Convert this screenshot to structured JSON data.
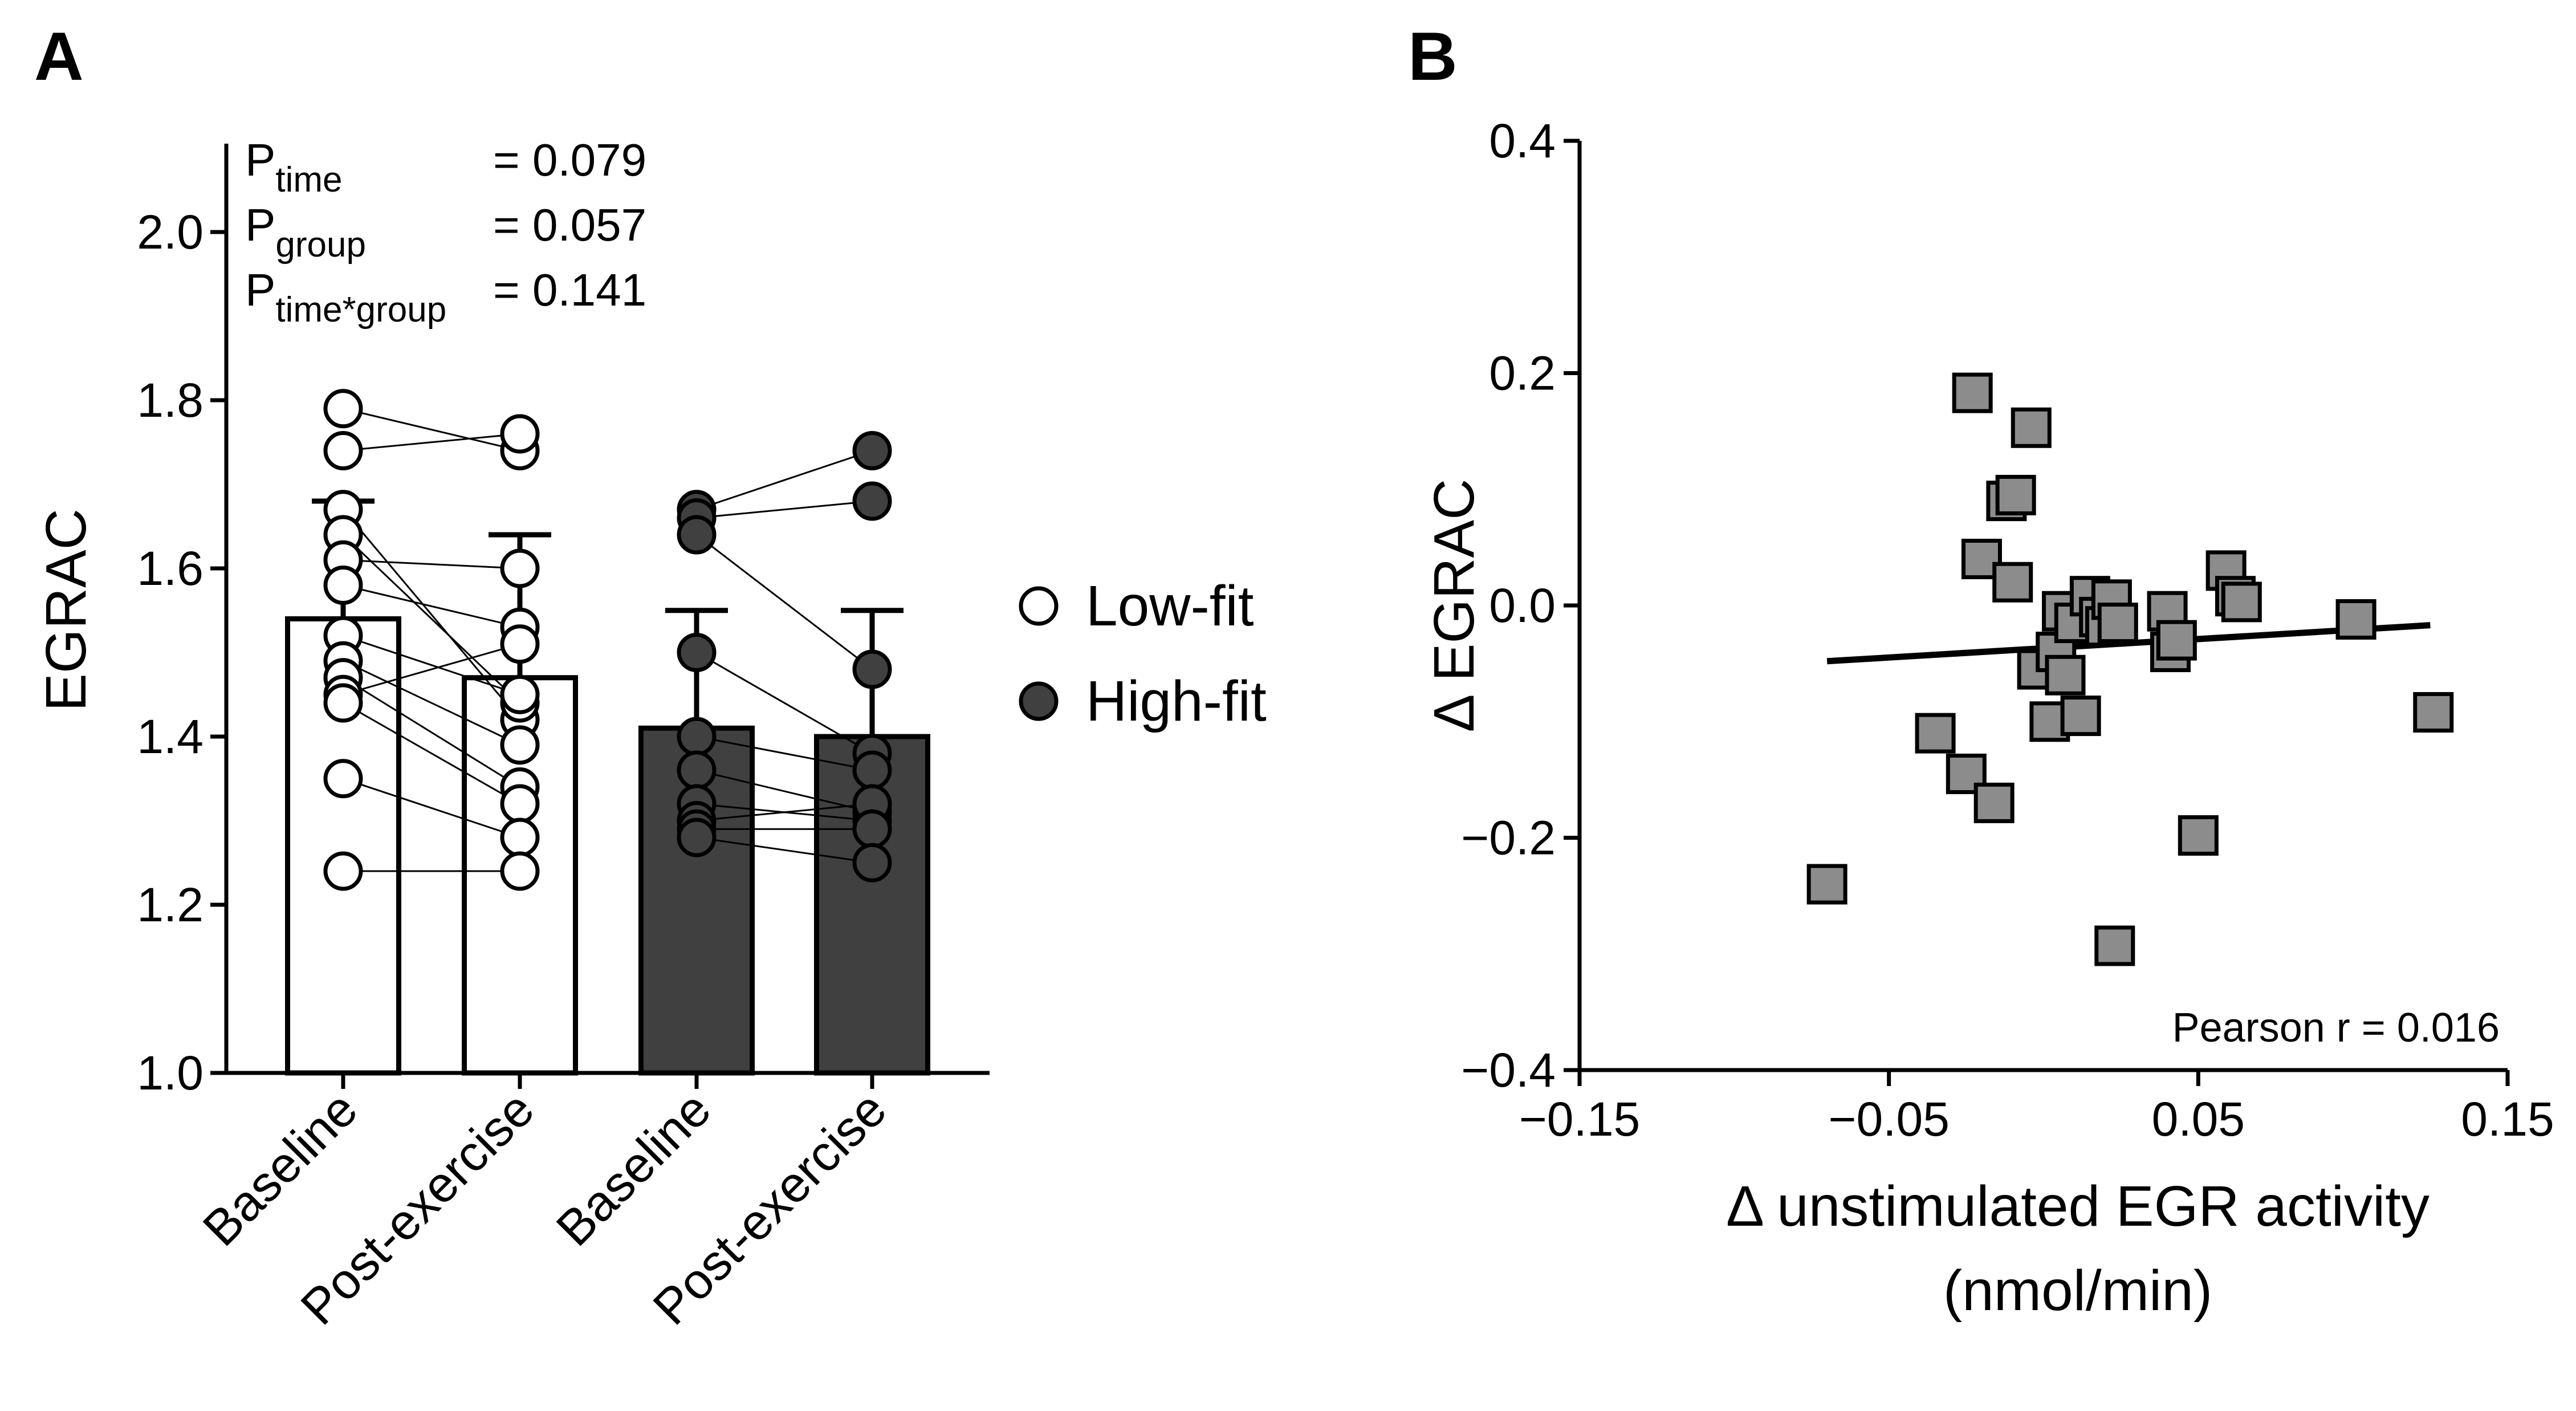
{
  "colors": {
    "low_fit_fill": "#ffffff",
    "high_fit_fill": "#404040",
    "scatter_fill": "#8c8c8c",
    "stroke": "#000000"
  },
  "chart_data": [
    {
      "panel_label": "A",
      "type": "bar",
      "categories": [
        "Baseline",
        "Post-exercise",
        "Baseline",
        "Post-exercise"
      ],
      "ylabel": "EGRAC",
      "ylim": [
        1.0,
        2.1
      ],
      "yticks": [
        "1.0",
        "1.2",
        "1.4",
        "1.6",
        "1.8",
        "2.0"
      ],
      "bars": [
        {
          "group": "Low-fit",
          "mean": 1.54,
          "sd": 0.14
        },
        {
          "group": "Low-fit",
          "mean": 1.47,
          "sd": 0.17
        },
        {
          "group": "High-fit",
          "mean": 1.41,
          "sd": 0.14
        },
        {
          "group": "High-fit",
          "mean": 1.4,
          "sd": 0.15
        }
      ],
      "paired_points": {
        "low_fit": {
          "baseline": [
            1.79,
            1.74,
            1.67,
            1.64,
            1.61,
            1.58,
            1.52,
            1.49,
            1.47,
            1.45,
            1.44,
            1.35,
            1.24
          ],
          "post": [
            1.74,
            1.76,
            1.42,
            1.44,
            1.6,
            1.53,
            1.45,
            1.39,
            1.34,
            1.51,
            1.32,
            1.28,
            1.24
          ]
        },
        "high_fit": {
          "baseline": [
            1.67,
            1.66,
            1.64,
            1.5,
            1.4,
            1.36,
            1.32,
            1.3,
            1.29,
            1.28
          ],
          "post": [
            1.74,
            1.68,
            1.48,
            1.38,
            1.36,
            1.31,
            1.3,
            1.32,
            1.29,
            1.25
          ]
        }
      },
      "stats": [
        {
          "base": "P",
          "sub": "time",
          "value": "= 0.079"
        },
        {
          "base": "P",
          "sub": "group",
          "value": "= 0.057"
        },
        {
          "base": "P",
          "sub": "time*group",
          "value": "= 0.141"
        }
      ],
      "legend": [
        {
          "label": "Low-fit",
          "fill": "#ffffff"
        },
        {
          "label": "High-fit",
          "fill": "#404040"
        }
      ]
    },
    {
      "panel_label": "B",
      "type": "scatter",
      "xlabel_line1": "Δ unstimulated EGR activity",
      "xlabel_line2": "(nmol/min)",
      "ylabel": "Δ EGRAC",
      "xlim": [
        -0.15,
        0.15
      ],
      "ylim": [
        -0.4,
        0.4
      ],
      "xticks": [
        "−0.15",
        "−0.05",
        "0.05",
        "0.15"
      ],
      "yticks": [
        "−0.4",
        "−0.2",
        "0.0",
        "0.2",
        "0.4"
      ],
      "annotation": "Pearson r = 0.016",
      "regression": {
        "x0": -0.07,
        "y0": -0.048,
        "x1": 0.125,
        "y1": -0.017
      },
      "points": [
        {
          "x": -0.07,
          "y": -0.24
        },
        {
          "x": -0.035,
          "y": -0.11
        },
        {
          "x": -0.025,
          "y": -0.145
        },
        {
          "x": -0.023,
          "y": 0.183
        },
        {
          "x": -0.02,
          "y": 0.04
        },
        {
          "x": -0.016,
          "y": -0.17
        },
        {
          "x": -0.012,
          "y": 0.09
        },
        {
          "x": -0.01,
          "y": 0.02
        },
        {
          "x": -0.009,
          "y": 0.095
        },
        {
          "x": -0.004,
          "y": 0.153
        },
        {
          "x": -0.002,
          "y": -0.055
        },
        {
          "x": 0.002,
          "y": -0.1
        },
        {
          "x": 0.004,
          "y": -0.04
        },
        {
          "x": 0.006,
          "y": -0.005
        },
        {
          "x": 0.007,
          "y": -0.06
        },
        {
          "x": 0.01,
          "y": -0.015
        },
        {
          "x": 0.012,
          "y": -0.095
        },
        {
          "x": 0.015,
          "y": 0.008
        },
        {
          "x": 0.018,
          "y": -0.01
        },
        {
          "x": 0.02,
          "y": -0.018
        },
        {
          "x": 0.022,
          "y": 0.005
        },
        {
          "x": 0.024,
          "y": -0.015
        },
        {
          "x": 0.023,
          "y": -0.293
        },
        {
          "x": 0.04,
          "y": -0.005
        },
        {
          "x": 0.041,
          "y": -0.04
        },
        {
          "x": 0.043,
          "y": -0.03
        },
        {
          "x": 0.05,
          "y": -0.198
        },
        {
          "x": 0.059,
          "y": 0.03
        },
        {
          "x": 0.062,
          "y": 0.008
        },
        {
          "x": 0.064,
          "y": 0.003
        },
        {
          "x": 0.101,
          "y": -0.012
        },
        {
          "x": 0.126,
          "y": -0.092
        }
      ]
    }
  ]
}
